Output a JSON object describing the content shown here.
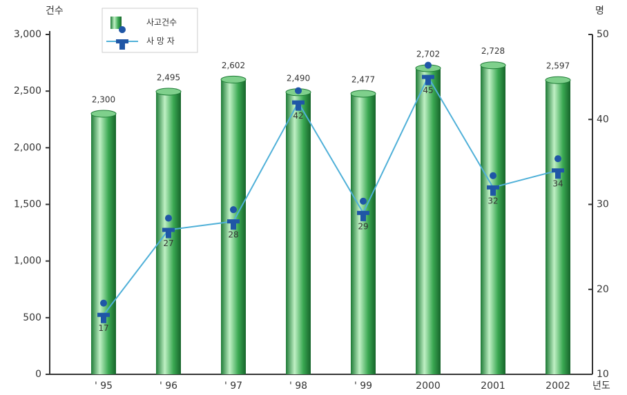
{
  "chart_data": {
    "type": "bar-line",
    "y_label": "건수",
    "y2_label": "명",
    "x_label": "년도",
    "categories": [
      "' 95",
      "' 96",
      "' 97",
      "' 98",
      "' 99",
      "2000",
      "2001",
      "2002"
    ],
    "series": [
      {
        "name": "사고건수",
        "type": "bar",
        "color": "#2e9e48",
        "values": [
          2300,
          2495,
          2602,
          2490,
          2477,
          2702,
          2728,
          2597
        ],
        "value_labels": [
          "2,300",
          "2,495",
          "2,602",
          "2,490",
          "2,477",
          "2,702",
          "2,728",
          "2,597"
        ]
      },
      {
        "name": "사 망 자",
        "type": "line",
        "axis": "y2",
        "color": "#4fb0d8",
        "values": [
          17,
          27,
          28,
          42,
          29,
          45,
          32,
          34
        ]
      }
    ],
    "ylim": [
      0,
      3000
    ],
    "yticks": [
      0,
      500,
      {
        "value": 1000,
        "label": "1,000"
      },
      {
        "value": 1500,
        "label": "1,500"
      },
      {
        "value": 2000,
        "label": "2,000"
      },
      {
        "value": 2500,
        "label": "2,500"
      },
      {
        "value": 3000,
        "label": "3,000"
      }
    ],
    "y2lim": [
      10,
      50
    ],
    "y2ticks": [
      10,
      20,
      30,
      40,
      50
    ],
    "legend": "top-left"
  }
}
